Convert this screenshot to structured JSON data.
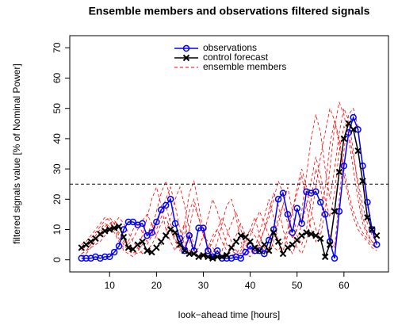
{
  "chart_data": {
    "type": "line",
    "title": "Ensemble members and observations filtered signals",
    "x_label": "look−ahead time [hours]",
    "y_label": "filtered signals value [% of Nominal Power]",
    "x": [
      4,
      5,
      6,
      7,
      8,
      9,
      10,
      11,
      12,
      13,
      14,
      15,
      16,
      17,
      18,
      19,
      20,
      21,
      22,
      23,
      24,
      25,
      26,
      27,
      28,
      29,
      30,
      31,
      32,
      33,
      34,
      35,
      36,
      37,
      38,
      39,
      40,
      41,
      42,
      43,
      44,
      45,
      46,
      47,
      48,
      49,
      50,
      51,
      52,
      53,
      54,
      55,
      56,
      57,
      58,
      59,
      60,
      61,
      62,
      63,
      64,
      65,
      66,
      67
    ],
    "xlim": [
      1.5,
      69.5
    ],
    "xticks": [
      10,
      20,
      30,
      40,
      50,
      60
    ],
    "ylim": [
      -4,
      74
    ],
    "yticks": [
      0,
      10,
      20,
      30,
      40,
      50,
      60,
      70
    ],
    "threshold": 25,
    "series": [
      {
        "name": "observations",
        "color": "#0000ff",
        "marker": "circle",
        "values": [
          0.5,
          0.5,
          0.5,
          1,
          0.5,
          1,
          1,
          2.5,
          4.5,
          10,
          12.5,
          12.5,
          11.5,
          12,
          8,
          9,
          12.5,
          16.5,
          18,
          20,
          12,
          7,
          3,
          8,
          3,
          10.5,
          10.5,
          3,
          1,
          3,
          0.5,
          0.5,
          0.5,
          1,
          0.5,
          2.5,
          4.5,
          3,
          3,
          2,
          6.5,
          10,
          20,
          22,
          15,
          9,
          17,
          12,
          22.5,
          22,
          22.5,
          19,
          15,
          6,
          0.5,
          16,
          31,
          42,
          47,
          43,
          31,
          19,
          10,
          5
        ]
      },
      {
        "name": "control forecast",
        "color": "#000000",
        "marker": "x",
        "values": [
          4,
          5,
          6,
          7,
          8.5,
          9.5,
          10,
          10.5,
          11,
          7.5,
          4,
          3.5,
          5,
          6,
          3,
          2.5,
          4,
          6,
          8,
          10,
          9,
          5,
          3,
          2,
          2,
          1,
          1.5,
          1,
          0.5,
          1,
          1,
          1.5,
          4,
          6,
          8,
          7.5,
          6,
          4,
          3,
          5,
          3,
          9,
          6,
          2,
          4,
          5,
          6.5,
          8,
          9,
          8.5,
          8,
          7,
          1,
          5,
          16,
          29,
          40,
          45,
          43,
          36,
          26,
          14,
          10,
          8
        ]
      }
    ],
    "ensemble": {
      "name": "ensemble members",
      "color": "#ff0000",
      "members": [
        [
          3,
          5,
          7,
          9,
          11,
          13,
          14,
          12,
          8,
          5,
          3,
          2,
          4,
          8,
          14,
          20,
          24,
          18,
          10,
          6,
          3,
          8,
          12,
          6,
          3,
          1,
          2,
          4,
          8,
          10,
          6,
          3,
          2,
          1,
          3,
          6,
          10,
          14,
          8,
          4,
          2,
          6,
          12,
          18,
          24,
          16,
          8,
          5,
          10,
          20,
          30,
          24,
          14,
          8,
          4,
          20,
          36,
          48,
          50,
          44,
          30,
          18,
          10,
          6
        ],
        [
          2,
          3,
          5,
          8,
          10,
          12,
          11,
          9,
          6,
          4,
          6,
          10,
          12,
          9,
          6,
          10,
          16,
          22,
          26,
          20,
          12,
          6,
          4,
          10,
          18,
          14,
          8,
          4,
          2,
          1,
          3,
          8,
          12,
          16,
          10,
          5,
          2,
          4,
          9,
          14,
          20,
          14,
          6,
          3,
          8,
          16,
          22,
          28,
          18,
          10,
          6,
          12,
          24,
          38,
          46,
          40,
          30,
          22,
          16,
          12,
          9,
          7,
          5,
          4
        ],
        [
          5,
          6,
          8,
          10,
          12,
          14,
          13,
          10,
          7,
          3,
          2,
          1,
          3,
          5,
          8,
          12,
          10,
          14,
          18,
          12,
          7,
          3,
          12,
          22,
          26,
          18,
          9,
          4,
          2,
          6,
          12,
          18,
          20,
          14,
          6,
          2,
          1,
          3,
          6,
          10,
          14,
          20,
          26,
          22,
          14,
          8,
          4,
          2,
          6,
          14,
          24,
          34,
          42,
          50,
          46,
          38,
          28,
          20,
          14,
          10,
          8,
          6,
          4,
          3
        ],
        [
          1,
          2,
          4,
          6,
          8,
          10,
          12,
          13,
          11,
          8,
          5,
          7,
          10,
          13,
          15,
          12,
          8,
          5,
          9,
          14,
          20,
          24,
          18,
          10,
          5,
          2,
          1,
          3,
          6,
          10,
          14,
          10,
          6,
          3,
          2,
          4,
          8,
          12,
          16,
          12,
          8,
          4,
          3,
          6,
          10,
          16,
          24,
          30,
          24,
          16,
          10,
          8,
          16,
          30,
          44,
          52,
          48,
          40,
          30,
          20,
          12,
          8,
          6,
          5
        ],
        [
          4,
          4,
          5,
          7,
          9,
          11,
          12,
          11,
          9,
          6,
          4,
          3,
          2,
          3,
          5,
          8,
          12,
          16,
          20,
          24,
          18,
          10,
          5,
          3,
          2,
          4,
          8,
          14,
          20,
          16,
          10,
          5,
          3,
          2,
          4,
          7,
          10,
          8,
          5,
          3,
          4,
          8,
          14,
          18,
          12,
          7,
          10,
          16,
          28,
          40,
          48,
          42,
          30,
          20,
          30,
          42,
          50,
          46,
          36,
          24,
          14,
          9,
          6,
          4
        ],
        [
          2,
          3,
          4,
          5,
          6,
          8,
          10,
          12,
          14,
          12,
          9,
          6,
          4,
          2,
          3,
          5,
          8,
          12,
          14,
          10,
          6,
          4,
          8,
          16,
          20,
          14,
          8,
          6,
          4,
          2,
          1,
          2,
          4,
          8,
          12,
          8,
          4,
          2,
          5,
          10,
          16,
          22,
          18,
          10,
          5,
          2,
          6,
          12,
          18,
          26,
          34,
          28,
          20,
          14,
          22,
          36,
          44,
          42,
          34,
          26,
          18,
          12,
          8,
          6
        ]
      ]
    }
  }
}
